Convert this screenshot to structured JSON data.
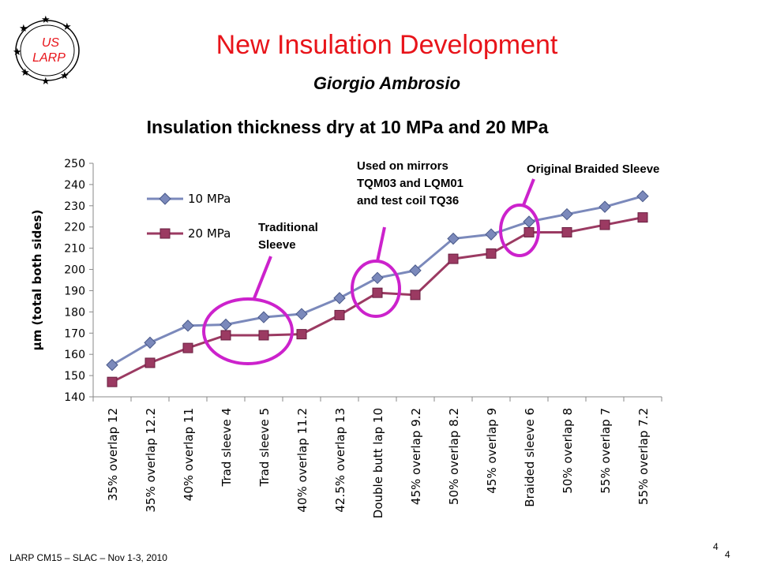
{
  "logo": {
    "line1": "US",
    "line2": "LARP"
  },
  "slide": {
    "title": "New Insulation Development",
    "author": "Giorgio Ambrosio",
    "footer": "LARP CM15 – SLAC – Nov 1-3, 2010",
    "page_number_1": "4",
    "page_number_2": "4"
  },
  "annotations": {
    "traditional": "Traditional Sleeve",
    "mirrors": "Used on mirrors TQM03 and LQM01 and test coil TQ36",
    "original": "Original Braided Sleeve"
  },
  "colors": {
    "series_10": "#7b89bb",
    "series_20": "#9b3a62",
    "circle": "#cc22cc",
    "title": "#e8141a"
  },
  "chart_data": {
    "type": "line",
    "title": "Insulation thickness dry at 10 MPa and 20 MPa",
    "xlabel": "",
    "ylabel": "µm (total both sides)",
    "ylim": [
      140,
      250
    ],
    "yticks": [
      140,
      150,
      160,
      170,
      180,
      190,
      200,
      210,
      220,
      230,
      240,
      250
    ],
    "grid": false,
    "legend": "upper-left",
    "categories": [
      "35% overlap 12",
      "35% overlap 12.2",
      "40% overlap 11",
      "Trad sleeve 4",
      "Trad sleeve 5",
      "40% overlap 11.2",
      "42.5% overlap 13",
      "Double butt lap 10",
      "45% overlap 9.2",
      "50% overlap 8.2",
      "45% overlap 9",
      "Braided sleeve 6",
      "50% overlap 8",
      "55% overlap 7",
      "55% overlap 7.2"
    ],
    "series": [
      {
        "name": "10 MPa",
        "values": [
          155,
          165.5,
          173.5,
          174,
          177.5,
          179,
          186.5,
          196,
          199.5,
          214.5,
          216.5,
          222.5,
          226,
          229.5,
          234.5
        ]
      },
      {
        "name": "20 MPa",
        "values": [
          147,
          156,
          163,
          169,
          169,
          169.5,
          178.5,
          189,
          188,
          205,
          207.5,
          217.5,
          217.5,
          221,
          224.5
        ]
      }
    ]
  }
}
